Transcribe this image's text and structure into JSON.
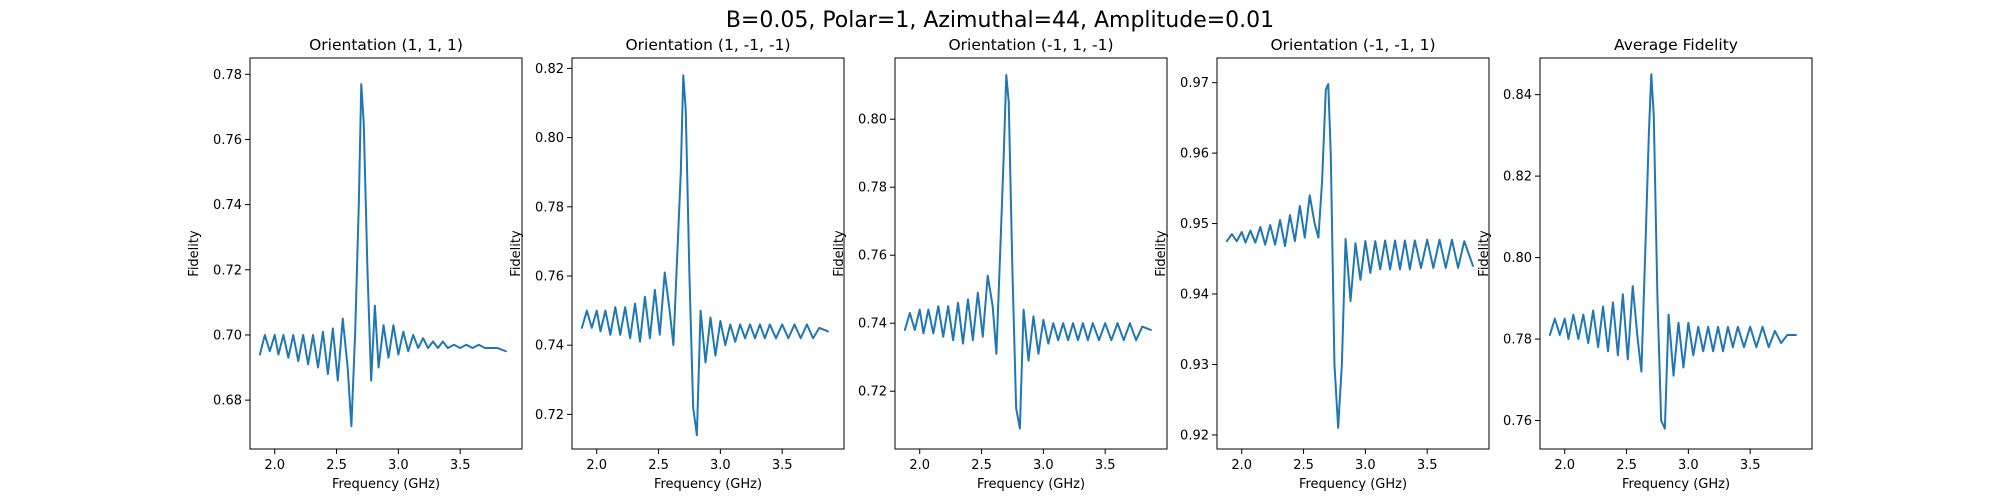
{
  "figure": {
    "suptitle": "B=0.05, Polar=1, Azimuthal=44, Amplitude=0.01",
    "line_color": "#1f77b4"
  },
  "chart_data": [
    {
      "type": "line",
      "title": "Orientation (1, 1, 1)",
      "xlabel": "Frequency (GHz)",
      "ylabel": "Fidelity",
      "xlim": [
        1.8,
        4.0
      ],
      "ylim": [
        0.665,
        0.785
      ],
      "xticks": [
        "2.0",
        "2.5",
        "3.0",
        "3.5"
      ],
      "xtick_values": [
        2.0,
        2.5,
        3.0,
        3.5
      ],
      "yticks": [
        "0.68",
        "0.70",
        "0.72",
        "0.74",
        "0.76",
        "0.78"
      ],
      "ytick_values": [
        0.68,
        0.7,
        0.72,
        0.74,
        0.76,
        0.78
      ],
      "series": [
        {
          "x": [
            1.88,
            1.92,
            1.96,
            2.0,
            2.03,
            2.07,
            2.11,
            2.15,
            2.19,
            2.23,
            2.27,
            2.31,
            2.35,
            2.39,
            2.43,
            2.47,
            2.51,
            2.55,
            2.59,
            2.62,
            2.65,
            2.68,
            2.7,
            2.72,
            2.75,
            2.78,
            2.81,
            2.84,
            2.88,
            2.92,
            2.96,
            3.0,
            3.04,
            3.08,
            3.12,
            3.16,
            3.2,
            3.24,
            3.28,
            3.32,
            3.36,
            3.4,
            3.45,
            3.5,
            3.55,
            3.6,
            3.65,
            3.7,
            3.75,
            3.8,
            3.87
          ],
          "y": [
            0.694,
            0.7,
            0.695,
            0.7,
            0.694,
            0.7,
            0.693,
            0.7,
            0.692,
            0.7,
            0.691,
            0.7,
            0.69,
            0.701,
            0.688,
            0.702,
            0.686,
            0.705,
            0.69,
            0.672,
            0.7,
            0.74,
            0.777,
            0.765,
            0.72,
            0.686,
            0.709,
            0.69,
            0.703,
            0.693,
            0.703,
            0.694,
            0.701,
            0.695,
            0.7,
            0.696,
            0.699,
            0.696,
            0.698,
            0.696,
            0.698,
            0.696,
            0.697,
            0.696,
            0.697,
            0.696,
            0.697,
            0.696,
            0.696,
            0.696,
            0.695
          ]
        }
      ]
    },
    {
      "type": "line",
      "title": "Orientation (1, -1, -1)",
      "xlabel": "Frequency (GHz)",
      "ylabel": "Fidelity",
      "xlim": [
        1.8,
        4.0
      ],
      "ylim": [
        0.71,
        0.823
      ],
      "xticks": [
        "2.0",
        "2.5",
        "3.0",
        "3.5"
      ],
      "xtick_values": [
        2.0,
        2.5,
        3.0,
        3.5
      ],
      "yticks": [
        "0.72",
        "0.74",
        "0.76",
        "0.78",
        "0.80",
        "0.82"
      ],
      "ytick_values": [
        0.72,
        0.74,
        0.76,
        0.78,
        0.8,
        0.82
      ],
      "series": [
        {
          "x": [
            1.88,
            1.92,
            1.96,
            2.0,
            2.03,
            2.07,
            2.11,
            2.15,
            2.19,
            2.23,
            2.27,
            2.31,
            2.35,
            2.39,
            2.43,
            2.47,
            2.51,
            2.55,
            2.59,
            2.62,
            2.65,
            2.68,
            2.7,
            2.72,
            2.75,
            2.78,
            2.81,
            2.84,
            2.88,
            2.92,
            2.96,
            3.0,
            3.04,
            3.08,
            3.12,
            3.16,
            3.2,
            3.24,
            3.28,
            3.32,
            3.36,
            3.4,
            3.45,
            3.5,
            3.55,
            3.6,
            3.65,
            3.7,
            3.75,
            3.8,
            3.87
          ],
          "y": [
            0.745,
            0.75,
            0.745,
            0.75,
            0.744,
            0.75,
            0.743,
            0.751,
            0.743,
            0.751,
            0.742,
            0.752,
            0.741,
            0.754,
            0.742,
            0.756,
            0.743,
            0.761,
            0.75,
            0.74,
            0.765,
            0.79,
            0.818,
            0.808,
            0.76,
            0.722,
            0.714,
            0.75,
            0.735,
            0.748,
            0.737,
            0.747,
            0.74,
            0.746,
            0.741,
            0.746,
            0.742,
            0.746,
            0.742,
            0.746,
            0.742,
            0.746,
            0.742,
            0.746,
            0.742,
            0.746,
            0.742,
            0.746,
            0.742,
            0.745,
            0.744
          ]
        }
      ]
    },
    {
      "type": "line",
      "title": "Orientation (-1, 1, -1)",
      "xlabel": "Frequency (GHz)",
      "ylabel": "Fidelity",
      "xlim": [
        1.8,
        4.0
      ],
      "ylim": [
        0.703,
        0.818
      ],
      "xticks": [
        "2.0",
        "2.5",
        "3.0",
        "3.5"
      ],
      "xtick_values": [
        2.0,
        2.5,
        3.0,
        3.5
      ],
      "yticks": [
        "0.72",
        "0.74",
        "0.76",
        "0.78",
        "0.80"
      ],
      "ytick_values": [
        0.72,
        0.74,
        0.76,
        0.78,
        0.8
      ],
      "series": [
        {
          "x": [
            1.88,
            1.92,
            1.96,
            2.0,
            2.03,
            2.07,
            2.11,
            2.15,
            2.19,
            2.23,
            2.27,
            2.31,
            2.35,
            2.39,
            2.43,
            2.47,
            2.51,
            2.55,
            2.59,
            2.62,
            2.65,
            2.68,
            2.7,
            2.72,
            2.75,
            2.78,
            2.81,
            2.84,
            2.88,
            2.92,
            2.96,
            3.0,
            3.04,
            3.08,
            3.12,
            3.16,
            3.2,
            3.24,
            3.28,
            3.32,
            3.36,
            3.4,
            3.45,
            3.5,
            3.55,
            3.6,
            3.65,
            3.7,
            3.75,
            3.8,
            3.87
          ],
          "y": [
            0.738,
            0.743,
            0.738,
            0.744,
            0.737,
            0.744,
            0.737,
            0.745,
            0.736,
            0.745,
            0.735,
            0.746,
            0.734,
            0.747,
            0.735,
            0.749,
            0.736,
            0.754,
            0.745,
            0.731,
            0.76,
            0.79,
            0.813,
            0.805,
            0.755,
            0.715,
            0.709,
            0.744,
            0.729,
            0.742,
            0.731,
            0.741,
            0.734,
            0.74,
            0.735,
            0.74,
            0.735,
            0.74,
            0.735,
            0.74,
            0.735,
            0.74,
            0.735,
            0.74,
            0.735,
            0.74,
            0.735,
            0.74,
            0.735,
            0.739,
            0.738
          ]
        }
      ]
    },
    {
      "type": "line",
      "title": "Orientation (-1, -1, 1)",
      "xlabel": "Frequency (GHz)",
      "ylabel": "Fidelity",
      "xlim": [
        1.8,
        4.0
      ],
      "ylim": [
        0.918,
        0.9735
      ],
      "xticks": [
        "2.0",
        "2.5",
        "3.0",
        "3.5"
      ],
      "xtick_values": [
        2.0,
        2.5,
        3.0,
        3.5
      ],
      "yticks": [
        "0.92",
        "0.93",
        "0.94",
        "0.95",
        "0.96",
        "0.97"
      ],
      "ytick_values": [
        0.92,
        0.93,
        0.94,
        0.95,
        0.96,
        0.97
      ],
      "series": [
        {
          "x": [
            1.88,
            1.92,
            1.96,
            2.0,
            2.03,
            2.07,
            2.11,
            2.15,
            2.19,
            2.23,
            2.27,
            2.31,
            2.35,
            2.39,
            2.43,
            2.47,
            2.51,
            2.55,
            2.59,
            2.62,
            2.65,
            2.68,
            2.7,
            2.72,
            2.75,
            2.78,
            2.81,
            2.84,
            2.88,
            2.92,
            2.96,
            3.0,
            3.04,
            3.08,
            3.12,
            3.16,
            3.2,
            3.24,
            3.28,
            3.32,
            3.36,
            3.4,
            3.45,
            3.5,
            3.55,
            3.6,
            3.65,
            3.7,
            3.75,
            3.8,
            3.87
          ],
          "y": [
            0.9475,
            0.9485,
            0.9475,
            0.9488,
            0.9473,
            0.949,
            0.9473,
            0.9495,
            0.947,
            0.9498,
            0.947,
            0.9505,
            0.9468,
            0.9512,
            0.9475,
            0.9525,
            0.948,
            0.954,
            0.95,
            0.948,
            0.956,
            0.969,
            0.9698,
            0.96,
            0.93,
            0.921,
            0.93,
            0.9478,
            0.939,
            0.9472,
            0.942,
            0.9475,
            0.943,
            0.9475,
            0.9435,
            0.9476,
            0.9435,
            0.9476,
            0.9435,
            0.9476,
            0.9435,
            0.9476,
            0.9437,
            0.9477,
            0.9437,
            0.9477,
            0.9437,
            0.9477,
            0.9437,
            0.9475,
            0.944
          ]
        }
      ]
    },
    {
      "type": "line",
      "title": "Average Fidelity",
      "xlabel": "Frequency (GHz)",
      "ylabel": "Fidelity",
      "xlim": [
        1.8,
        4.0
      ],
      "ylim": [
        0.753,
        0.849
      ],
      "xticks": [
        "2.0",
        "2.5",
        "3.0",
        "3.5"
      ],
      "xtick_values": [
        2.0,
        2.5,
        3.0,
        3.5
      ],
      "yticks": [
        "0.76",
        "0.78",
        "0.80",
        "0.82",
        "0.84"
      ],
      "ytick_values": [
        0.76,
        0.78,
        0.8,
        0.82,
        0.84
      ],
      "series": [
        {
          "x": [
            1.88,
            1.92,
            1.96,
            2.0,
            2.03,
            2.07,
            2.11,
            2.15,
            2.19,
            2.23,
            2.27,
            2.31,
            2.35,
            2.39,
            2.43,
            2.47,
            2.51,
            2.55,
            2.59,
            2.62,
            2.65,
            2.68,
            2.7,
            2.72,
            2.75,
            2.78,
            2.81,
            2.84,
            2.88,
            2.92,
            2.96,
            3.0,
            3.04,
            3.08,
            3.12,
            3.16,
            3.2,
            3.24,
            3.28,
            3.32,
            3.36,
            3.4,
            3.45,
            3.5,
            3.55,
            3.6,
            3.65,
            3.7,
            3.75,
            3.8,
            3.87
          ],
          "y": [
            0.781,
            0.785,
            0.781,
            0.785,
            0.78,
            0.786,
            0.78,
            0.786,
            0.779,
            0.787,
            0.778,
            0.788,
            0.777,
            0.789,
            0.776,
            0.791,
            0.775,
            0.793,
            0.78,
            0.772,
            0.8,
            0.83,
            0.845,
            0.835,
            0.79,
            0.76,
            0.758,
            0.786,
            0.771,
            0.784,
            0.773,
            0.784,
            0.776,
            0.783,
            0.777,
            0.783,
            0.777,
            0.783,
            0.777,
            0.783,
            0.778,
            0.783,
            0.778,
            0.783,
            0.778,
            0.783,
            0.778,
            0.782,
            0.779,
            0.781,
            0.781
          ]
        }
      ]
    }
  ]
}
